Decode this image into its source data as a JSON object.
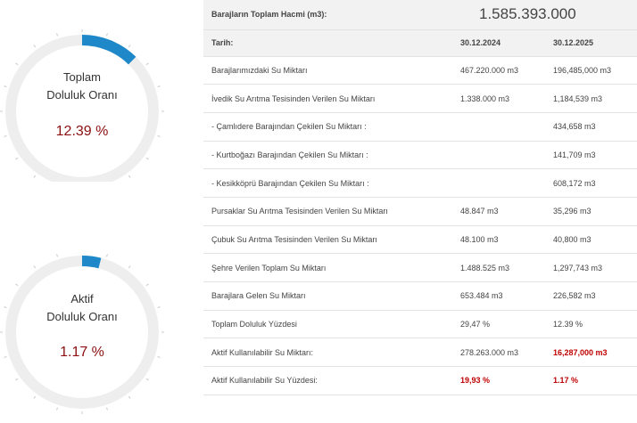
{
  "gauges": [
    {
      "label_line1": "Toplam",
      "label_line2": "Doluluk Oranı",
      "value": "12.39 %",
      "fraction": 0.1239
    },
    {
      "label_line1": "Aktif",
      "label_line2": "Doluluk Oranı",
      "value": "1.17 %",
      "fraction": 0.0117
    }
  ],
  "colors": {
    "accent": "#1e88c8",
    "track": "#eeeeee",
    "value_text": "#8b0f0f",
    "red": "#c00000",
    "header_bg": "#f2f2f2"
  },
  "table": {
    "total_label": "Barajların Toplam Hacmi (m3):",
    "total_value": "1.585.393.000",
    "date_label": "Tarih:",
    "date_1": "30.12.2024",
    "date_2": "30.12.2025",
    "rows": [
      {
        "label": "Barajlarımızdaki Su Miktarı",
        "v1": "467.220.000 m3",
        "v2": "196,485,000 m3"
      },
      {
        "label": "İvedik Su Arıtma Tesisinden Verilen Su Miktarı",
        "v1": "1.338.000 m3",
        "v2": "1,184,539 m3"
      },
      {
        "label": "- Çamlıdere Barajından Çekilen Su Miktarı :",
        "v1": "",
        "v2": "434,658 m3"
      },
      {
        "label": "- Kurtboğazı Barajından Çekilen Su Miktarı :",
        "v1": "",
        "v2": "141,709 m3"
      },
      {
        "label": "- Kesikköprü Barajından Çekilen Su Miktarı :",
        "v1": "",
        "v2": "608,172 m3"
      },
      {
        "label": "Pursaklar Su Arıtma Tesisinden Verilen Su Miktarı",
        "v1": "48.847 m3",
        "v2": "35,296 m3"
      },
      {
        "label": "Çubuk Su Arıtma Tesisinden Verilen Su Miktarı",
        "v1": "48.100 m3",
        "v2": "40,800 m3"
      },
      {
        "label": "Şehre Verilen Toplam Su Miktarı",
        "v1": "1.488.525 m3",
        "v2": "1,297,743 m3"
      },
      {
        "label": "Barajlara Gelen Su Miktarı",
        "v1": "653.484 m3",
        "v2": "226,582 m3"
      },
      {
        "label": "Toplam Doluluk Yüzdesi",
        "v1": "29,47 %",
        "v2": "12.39 %"
      },
      {
        "label": "Aktif Kullanılabilir Su Miktarı:",
        "v1": "278.263.000 m3",
        "v2": "16,287,000 m3"
      },
      {
        "label": "Aktif Kullanılabilir Su Yüzdesi:",
        "v1": "19,93 %",
        "v2": "1.17 %"
      }
    ]
  }
}
